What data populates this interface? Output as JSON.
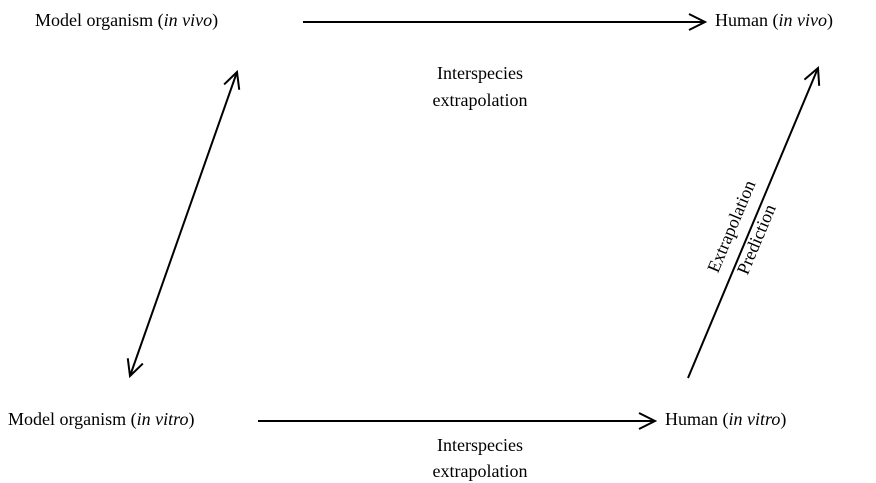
{
  "nodes": [
    {
      "label": [
        "Model organism (",
        "in vivo",
        ")"
      ]
    },
    {
      "label": [
        "Human (",
        "in vivo",
        ")"
      ]
    },
    {
      "label": [
        "Model organism (",
        "in vitro",
        ")"
      ]
    },
    {
      "label": [
        "Human (",
        "in vitro",
        ")"
      ]
    }
  ],
  "edges": [
    {
      "label": [
        "Interspecies",
        "extrapolation"
      ]
    },
    {
      "label": [
        "Interspecies",
        "extrapolation"
      ]
    },
    {
      "label": [
        "Extrapolation",
        "Prediction"
      ]
    }
  ]
}
